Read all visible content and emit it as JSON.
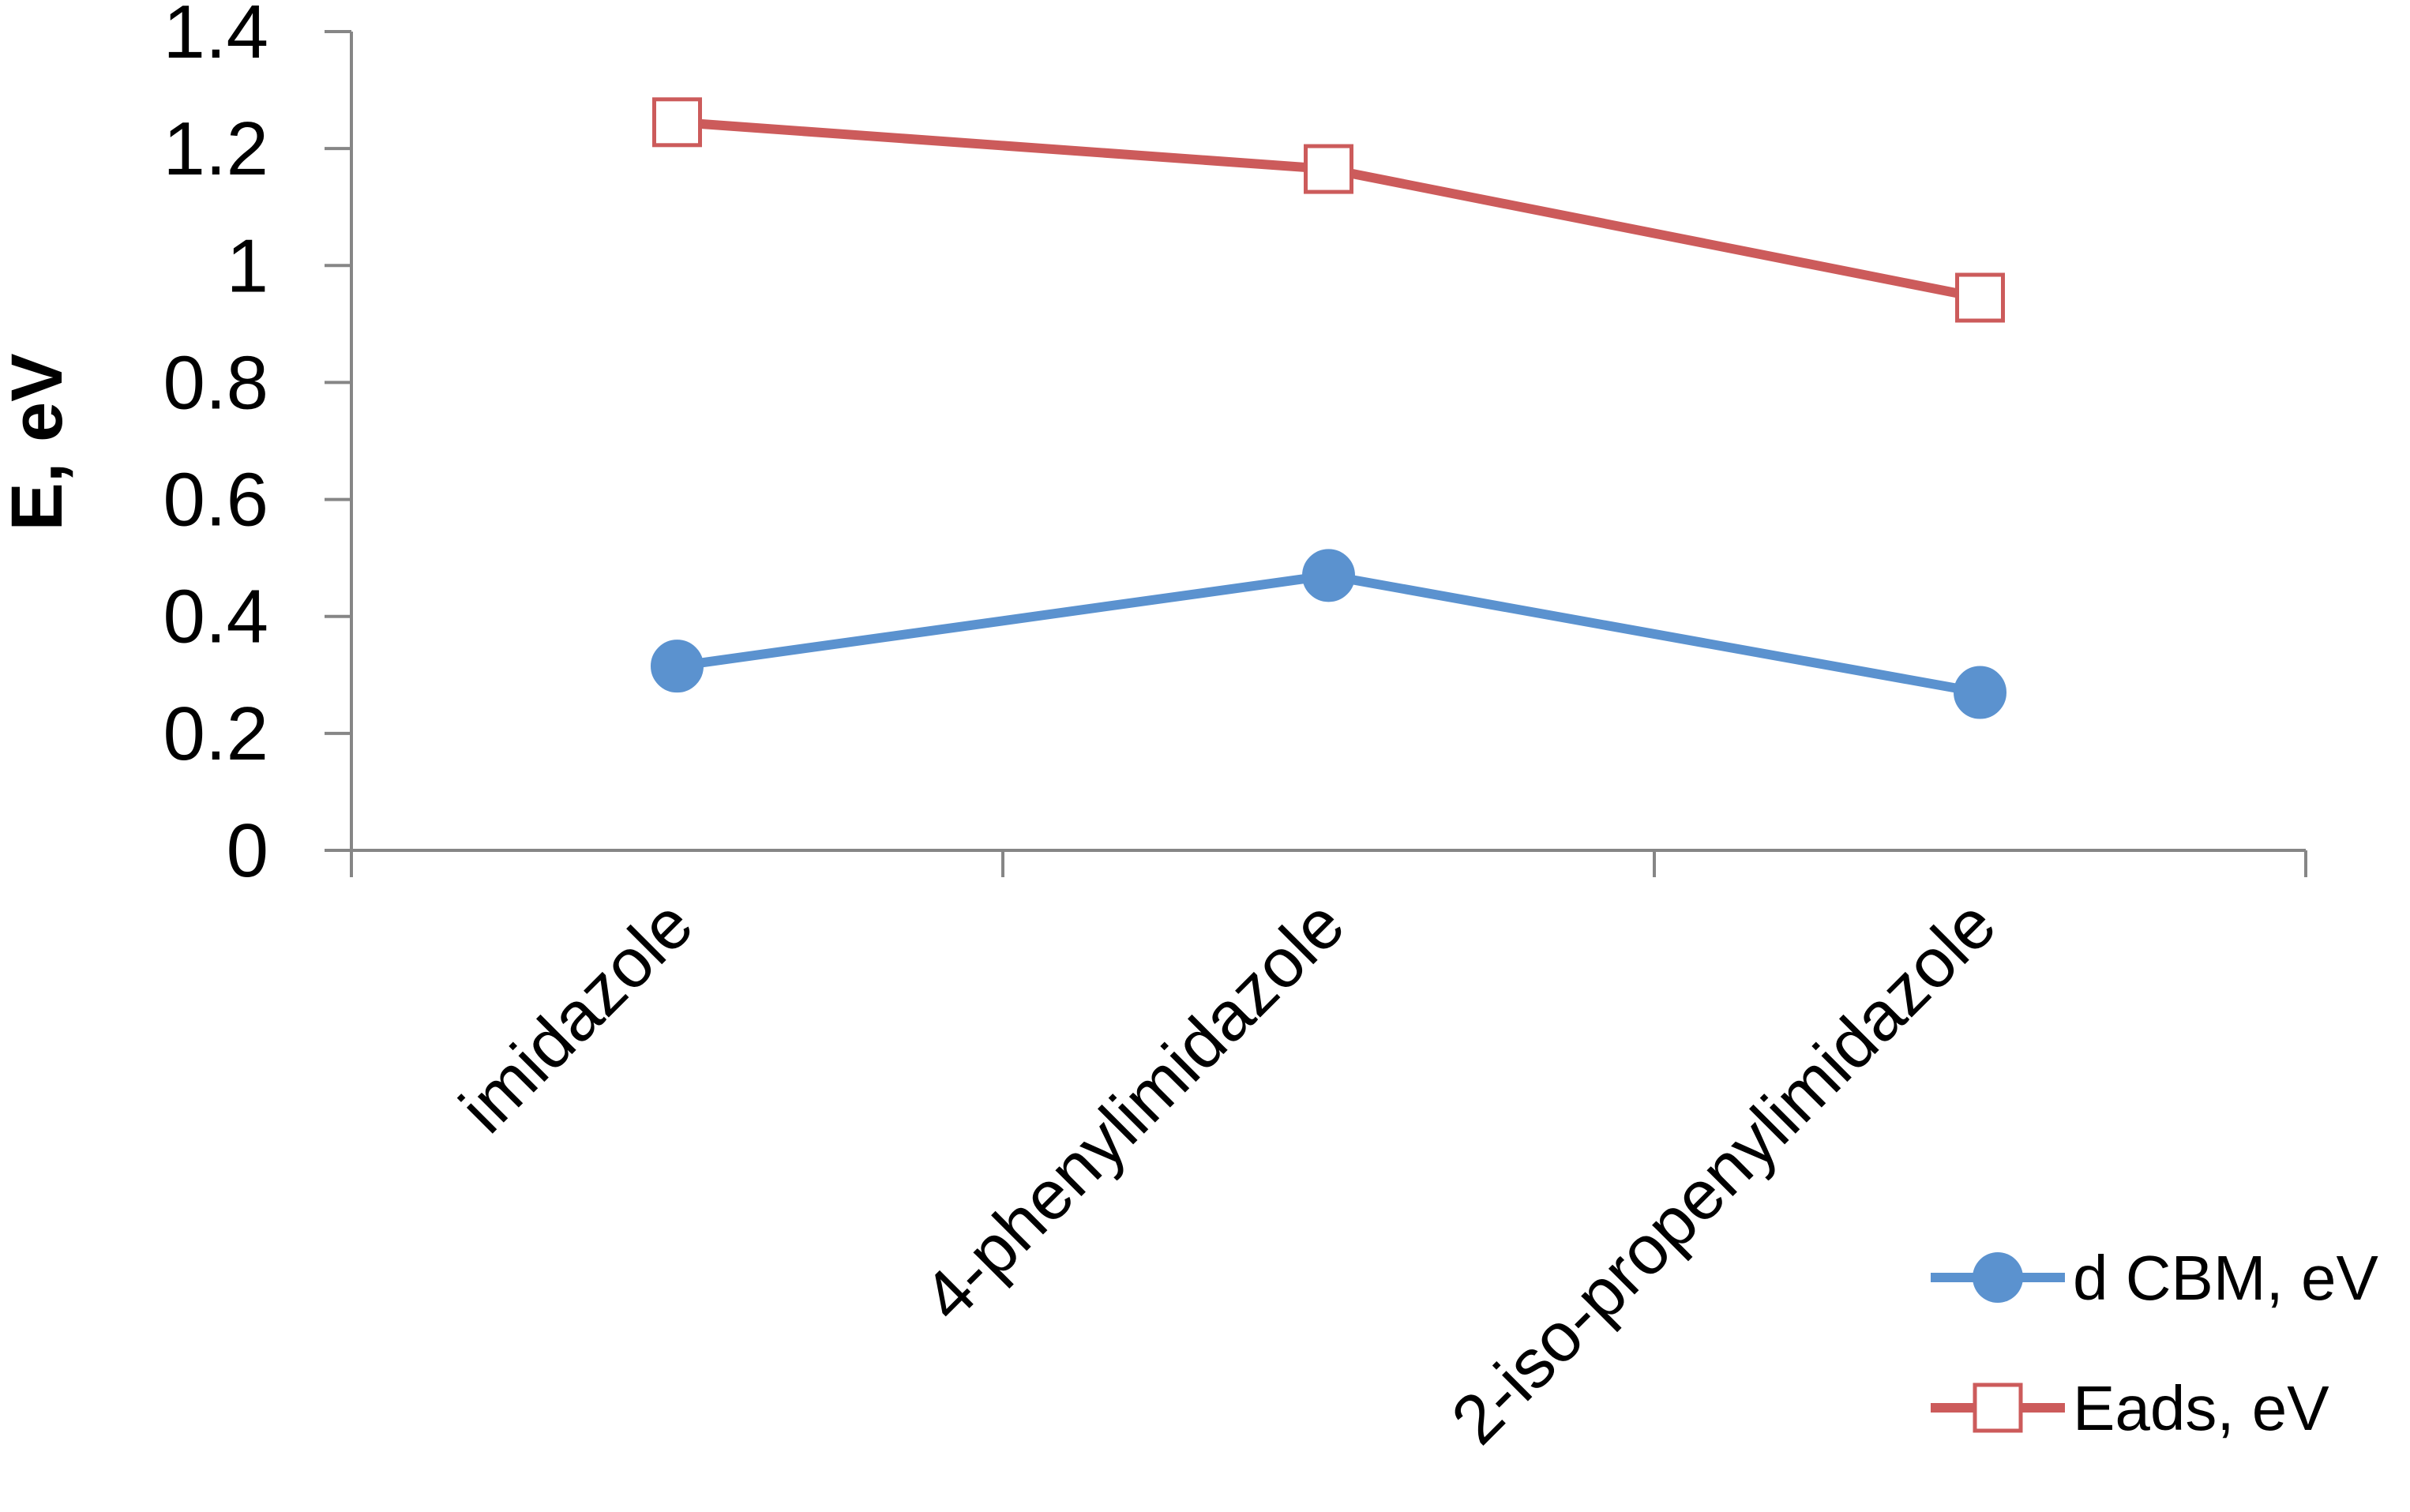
{
  "chart_data": {
    "type": "line",
    "categories": [
      "imidazole",
      "4-phenylimidazole",
      "2-iso-propenylimidazole"
    ],
    "series": [
      {
        "name": "d CBM, eV",
        "values": [
          0.315,
          0.47,
          0.27
        ],
        "color": "#5b92cf",
        "marker": "filled-circle"
      },
      {
        "name": "Eads, eV",
        "values": [
          1.245,
          1.165,
          0.945
        ],
        "color": "#cc5b5b",
        "marker": "open-square"
      }
    ],
    "title": "",
    "xlabel": "",
    "ylabel": "E, eV",
    "ylim": [
      0,
      1.4
    ],
    "yticks": [
      "0",
      "0.2",
      "0.4",
      "0.6",
      "0.8",
      "1",
      "1.2",
      "1.4"
    ],
    "grid": false,
    "legend_position": "bottom-right"
  }
}
